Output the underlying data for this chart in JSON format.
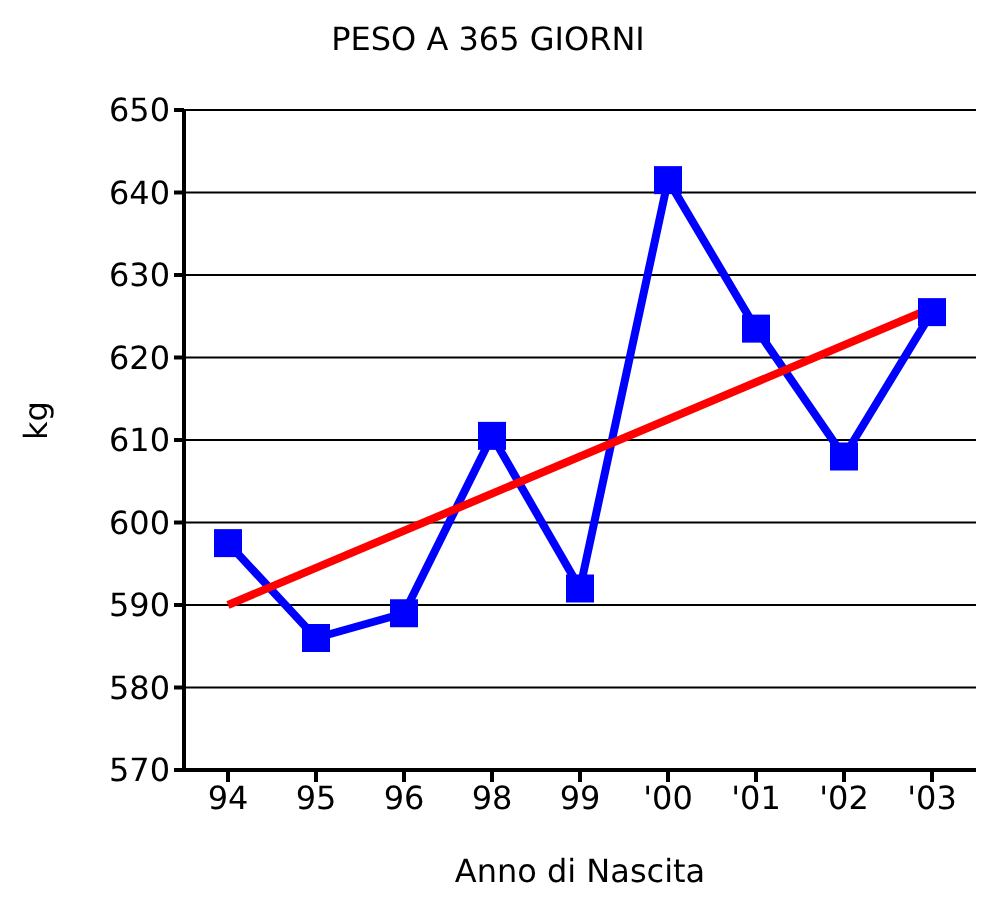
{
  "chart_data": {
    "type": "line",
    "title": "PESO A 365 GIORNI",
    "xlabel": "Anno di Nascita",
    "ylabel": "kg",
    "categories": [
      "94",
      "95",
      "96",
      "98",
      "99",
      "'00",
      "'01",
      "'02",
      "'03"
    ],
    "series": [
      {
        "color": "#0000ff",
        "values": [
          597.5,
          586,
          589,
          610.5,
          592,
          641.5,
          623.5,
          608,
          625.5
        ]
      },
      {
        "type": "line",
        "color": "#ff0000",
        "x": [
          "94",
          "'03"
        ],
        "values": [
          590,
          626
        ],
        "marker": "none"
      }
    ],
    "ylim": [
      570,
      650
    ],
    "yticks": [
      570,
      580,
      590,
      600,
      610,
      620,
      630,
      640,
      650
    ],
    "grid": "y",
    "marker": "square",
    "line_style": "solid",
    "legend": false
  }
}
